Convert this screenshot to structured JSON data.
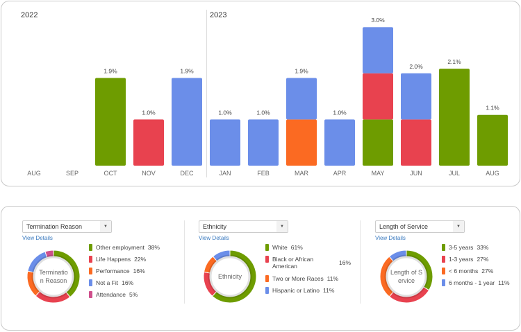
{
  "colors": {
    "green": "#6e9c00",
    "red": "#e8424f",
    "orange": "#fb6a22",
    "blue": "#6b8ee9",
    "pink": "#cf4f8c"
  },
  "chart_data": {
    "type": "bar",
    "stacked": true,
    "grid": false,
    "groups": [
      {
        "label": "2022",
        "months": [
          "AUG",
          "SEP",
          "OCT",
          "NOV",
          "DEC"
        ]
      },
      {
        "label": "2023",
        "months": [
          "JAN",
          "FEB",
          "MAR",
          "APR",
          "MAY",
          "JUN",
          "JUL",
          "AUG"
        ]
      }
    ],
    "categories": [
      "AUG",
      "SEP",
      "OCT",
      "NOV",
      "DEC",
      "JAN",
      "FEB",
      "MAR",
      "APR",
      "MAY",
      "JUN",
      "JUL",
      "AUG"
    ],
    "totals_labels": [
      "",
      "",
      "1.9%",
      "1.0%",
      "1.9%",
      "1.0%",
      "1.0%",
      "1.9%",
      "1.0%",
      "3.0%",
      "2.0%",
      "2.1%",
      "1.1%"
    ],
    "stacks": [
      [],
      [],
      [
        {
          "color": "green",
          "value": 1.9
        }
      ],
      [
        {
          "color": "red",
          "value": 1.0
        }
      ],
      [
        {
          "color": "blue",
          "value": 1.9
        }
      ],
      [
        {
          "color": "blue",
          "value": 1.0
        }
      ],
      [
        {
          "color": "blue",
          "value": 1.0
        }
      ],
      [
        {
          "color": "orange",
          "value": 1.0
        },
        {
          "color": "blue",
          "value": 0.9
        }
      ],
      [
        {
          "color": "blue",
          "value": 1.0
        }
      ],
      [
        {
          "color": "green",
          "value": 1.0
        },
        {
          "color": "red",
          "value": 1.0
        },
        {
          "color": "blue",
          "value": 1.0
        }
      ],
      [
        {
          "color": "red",
          "value": 1.0
        },
        {
          "color": "blue",
          "value": 1.0
        }
      ],
      [
        {
          "color": "green",
          "value": 2.1
        }
      ],
      [
        {
          "color": "green",
          "value": 1.1
        }
      ]
    ],
    "ylim": [
      0,
      3.4
    ]
  },
  "panels": [
    {
      "select": "Termination Reason",
      "view_details": "View Details",
      "center": [
        "Terminatio",
        "n Reason"
      ],
      "items": [
        {
          "label": "Other employment",
          "pct": "38%",
          "value": 38,
          "color": "green"
        },
        {
          "label": "Life Happens",
          "pct": "22%",
          "value": 22,
          "color": "red"
        },
        {
          "label": "Performance",
          "pct": "16%",
          "value": 16,
          "color": "orange"
        },
        {
          "label": "Not a Fit",
          "pct": "16%",
          "value": 16,
          "color": "blue"
        },
        {
          "label": "Attendance",
          "pct": "5%",
          "value": 5,
          "color": "pink"
        }
      ]
    },
    {
      "select": "Ethnicity",
      "view_details": "View Details",
      "center": [
        "Ethnicity"
      ],
      "items": [
        {
          "label": "White",
          "pct": "61%",
          "value": 61,
          "color": "green"
        },
        {
          "label": "Black or African American",
          "pct": "16%",
          "value": 16,
          "color": "red"
        },
        {
          "label": "Two or More Races",
          "pct": "11%",
          "value": 11,
          "color": "orange"
        },
        {
          "label": "Hispanic or Latino",
          "pct": "11%",
          "value": 11,
          "color": "blue"
        }
      ]
    },
    {
      "select": "Length of Service",
      "view_details": "View Details",
      "center": [
        "Length of S",
        "ervice"
      ],
      "items": [
        {
          "label": "3-5 years",
          "pct": "33%",
          "value": 33,
          "color": "green"
        },
        {
          "label": "1-3 years",
          "pct": "27%",
          "value": 27,
          "color": "red"
        },
        {
          "label": "< 6 months",
          "pct": "27%",
          "value": 27,
          "color": "orange"
        },
        {
          "label": "6 months - 1 year",
          "pct": "11%",
          "value": 11,
          "color": "blue"
        }
      ]
    }
  ]
}
